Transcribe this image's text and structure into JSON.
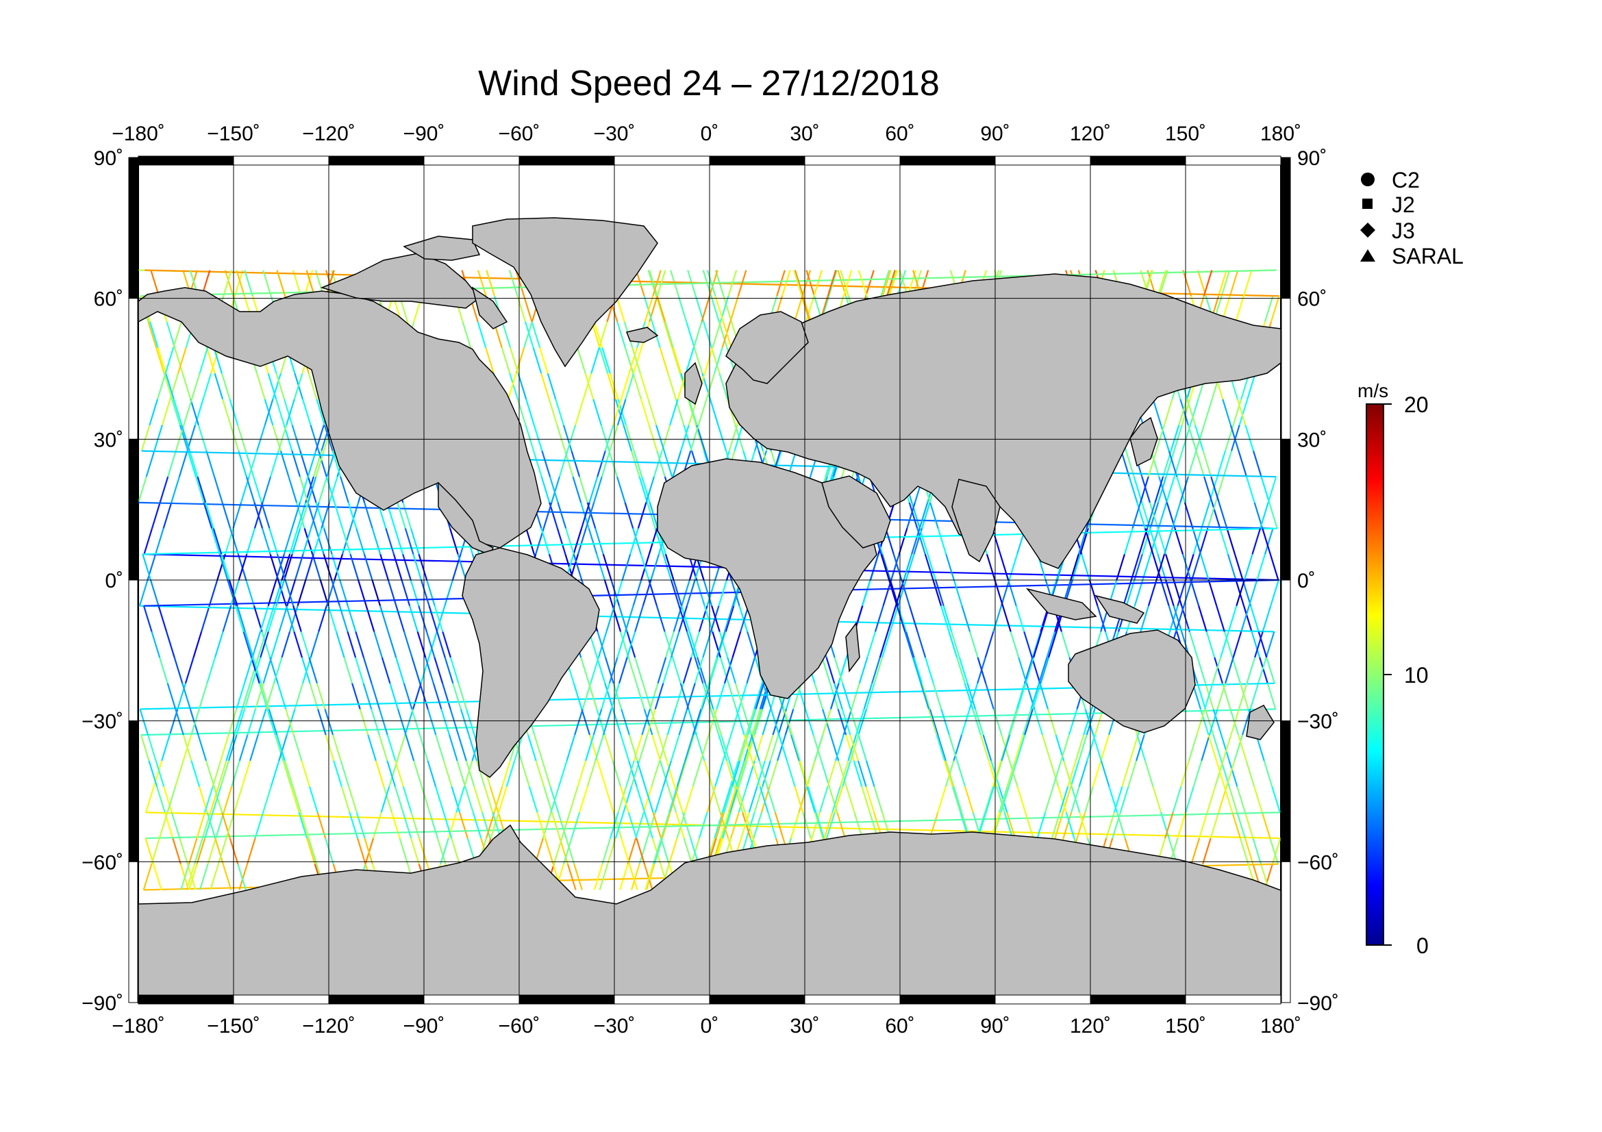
{
  "title": "Wind Speed 24 – 27/12/2018",
  "map": {
    "lon_range": [
      -180,
      180
    ],
    "lat_range": [
      -90,
      90
    ],
    "lon_ticks": [
      -180,
      -150,
      -120,
      -90,
      -60,
      -30,
      0,
      30,
      60,
      90,
      120,
      150,
      180
    ],
    "lat_ticks": [
      90,
      60,
      30,
      0,
      -30,
      -60,
      -90
    ],
    "lon_labels": [
      "−180˚",
      "−150˚",
      "−120˚",
      "−90˚",
      "−60˚",
      "−30˚",
      "0˚",
      "30˚",
      "60˚",
      "90˚",
      "120˚",
      "150˚",
      "180˚"
    ],
    "lat_labels": [
      "90˚",
      "60˚",
      "30˚",
      "0˚",
      "−30˚",
      "−60˚",
      "−90˚"
    ],
    "land_color": "#bebebe",
    "ocean_color": "#ffffff",
    "grid": true
  },
  "legend": {
    "items": [
      {
        "label": "C2",
        "marker": "circle"
      },
      {
        "label": "J2",
        "marker": "square"
      },
      {
        "label": "J3",
        "marker": "diamond"
      },
      {
        "label": "SARAL",
        "marker": "triangle"
      }
    ],
    "placement": "right"
  },
  "colorbar": {
    "unit": "m/s",
    "min": 0,
    "max": 20,
    "tick_values": [
      20,
      10,
      0
    ],
    "tick_labels": [
      "20",
      "10",
      "0"
    ],
    "colormap": "jet",
    "stops": [
      "#00008f",
      "#0000ff",
      "#00ffff",
      "#ffff00",
      "#ff0000",
      "#800000"
    ]
  }
}
